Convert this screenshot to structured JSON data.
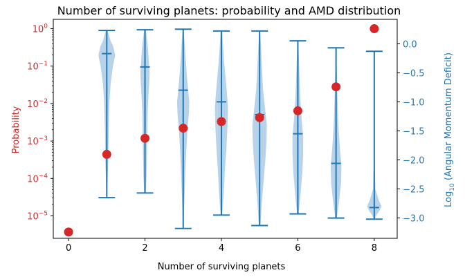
{
  "chart_data": {
    "type": "scatter",
    "title": "Number of surviving planets: probability and AMD distribution",
    "xlabel": "Number of surviving planets",
    "ylabel_left": "Probability",
    "ylabel_right_base": "Log",
    "ylabel_right_sub": "10",
    "ylabel_right_rest": " (Angular Momentum Deficit)",
    "x_ticks": [
      0,
      2,
      4,
      6,
      8
    ],
    "xlim": [
      -0.4,
      8.6
    ],
    "y_left": {
      "scale": "log",
      "lim_log10": [
        -5.6,
        0.25
      ],
      "tick_exponents": [
        0,
        -1,
        -2,
        -3,
        -4,
        -5
      ],
      "tick_base": "10"
    },
    "y_right": {
      "scale": "linear",
      "lim": [
        -3.35,
        0.42
      ],
      "ticks": [
        "0.0",
        "−0.5",
        "−1.0",
        "−1.5",
        "−2.0",
        "−2.5",
        "−3.0"
      ],
      "tick_values": [
        0.0,
        -0.5,
        -1.0,
        -1.5,
        -2.0,
        -2.5,
        -3.0
      ]
    },
    "probability_series": {
      "color": "#d62728",
      "x": [
        0,
        1,
        2,
        3,
        4,
        5,
        6,
        7,
        8
      ],
      "y": [
        3.7e-06,
        0.00044,
        0.00118,
        0.0022,
        0.0033,
        0.0042,
        0.0064,
        0.028,
        1.0
      ]
    },
    "amd_violins": {
      "color": "#1f77b4",
      "fill": "#a6c8e4",
      "items": [
        {
          "x": 1,
          "max": 0.23,
          "min": -2.65,
          "median": -0.17,
          "profile": [
            [
              0.23,
              0.02
            ],
            [
              0.15,
              0.06
            ],
            [
              0.05,
              0.1
            ],
            [
              -0.05,
              0.17
            ],
            [
              -0.2,
              0.22
            ],
            [
              -0.4,
              0.16
            ],
            [
              -0.7,
              0.1
            ],
            [
              -1.0,
              0.07
            ],
            [
              -1.5,
              0.05
            ],
            [
              -2.0,
              0.04
            ],
            [
              -2.4,
              0.02
            ],
            [
              -2.65,
              0.01
            ]
          ]
        },
        {
          "x": 2,
          "max": 0.24,
          "min": -2.57,
          "median": -0.4,
          "profile": [
            [
              0.24,
              0.02
            ],
            [
              0.1,
              0.05
            ],
            [
              -0.1,
              0.08
            ],
            [
              -0.3,
              0.1
            ],
            [
              -0.5,
              0.12
            ],
            [
              -0.7,
              0.11
            ],
            [
              -0.9,
              0.09
            ],
            [
              -1.2,
              0.07
            ],
            [
              -1.6,
              0.06
            ],
            [
              -2.0,
              0.05
            ],
            [
              -2.3,
              0.04
            ],
            [
              -2.57,
              0.02
            ]
          ]
        },
        {
          "x": 3,
          "max": 0.25,
          "min": -3.18,
          "median": -0.8,
          "profile": [
            [
              0.25,
              0.01
            ],
            [
              0.0,
              0.04
            ],
            [
              -0.2,
              0.06
            ],
            [
              -0.5,
              0.09
            ],
            [
              -0.8,
              0.13
            ],
            [
              -1.0,
              0.16
            ],
            [
              -1.2,
              0.15
            ],
            [
              -1.5,
              0.11
            ],
            [
              -2.0,
              0.07
            ],
            [
              -2.5,
              0.04
            ],
            [
              -2.9,
              0.02
            ],
            [
              -3.18,
              0.01
            ]
          ]
        },
        {
          "x": 4,
          "max": 0.22,
          "min": -2.95,
          "median": -1.0,
          "profile": [
            [
              0.22,
              0.02
            ],
            [
              0.0,
              0.04
            ],
            [
              -0.3,
              0.07
            ],
            [
              -0.6,
              0.11
            ],
            [
              -0.9,
              0.15
            ],
            [
              -1.1,
              0.17
            ],
            [
              -1.4,
              0.16
            ],
            [
              -1.8,
              0.13
            ],
            [
              -2.2,
              0.09
            ],
            [
              -2.6,
              0.06
            ],
            [
              -2.95,
              0.02
            ]
          ]
        },
        {
          "x": 5,
          "max": 0.22,
          "min": -3.13,
          "median": -1.22,
          "profile": [
            [
              0.22,
              0.01
            ],
            [
              0.0,
              0.03
            ],
            [
              -0.4,
              0.06
            ],
            [
              -0.8,
              0.09
            ],
            [
              -1.1,
              0.14
            ],
            [
              -1.4,
              0.19
            ],
            [
              -1.7,
              0.18
            ],
            [
              -2.0,
              0.15
            ],
            [
              -2.4,
              0.1
            ],
            [
              -2.8,
              0.05
            ],
            [
              -3.13,
              0.02
            ]
          ]
        },
        {
          "x": 6,
          "max": 0.05,
          "min": -2.93,
          "median": -1.55,
          "profile": [
            [
              0.05,
              0.01
            ],
            [
              -0.3,
              0.03
            ],
            [
              -0.7,
              0.05
            ],
            [
              -1.0,
              0.07
            ],
            [
              -1.3,
              0.1
            ],
            [
              -1.6,
              0.14
            ],
            [
              -1.9,
              0.14
            ],
            [
              -2.2,
              0.12
            ],
            [
              -2.6,
              0.07
            ],
            [
              -2.93,
              0.02
            ]
          ]
        },
        {
          "x": 7,
          "max": -0.07,
          "min": -3.0,
          "median": -2.06,
          "profile": [
            [
              -0.07,
              0.01
            ],
            [
              -0.5,
              0.02
            ],
            [
              -1.0,
              0.04
            ],
            [
              -1.4,
              0.06
            ],
            [
              -1.8,
              0.1
            ],
            [
              -2.1,
              0.14
            ],
            [
              -2.4,
              0.13
            ],
            [
              -2.7,
              0.08
            ],
            [
              -3.0,
              0.02
            ]
          ]
        },
        {
          "x": 8,
          "max": -0.13,
          "min": -3.02,
          "median": -2.82,
          "profile": [
            [
              -0.13,
              0.0
            ],
            [
              -1.0,
              0.01
            ],
            [
              -2.0,
              0.01
            ],
            [
              -2.5,
              0.03
            ],
            [
              -2.7,
              0.12
            ],
            [
              -2.8,
              0.19
            ],
            [
              -2.88,
              0.13
            ],
            [
              -2.95,
              0.06
            ],
            [
              -3.02,
              0.01
            ]
          ]
        }
      ]
    }
  }
}
